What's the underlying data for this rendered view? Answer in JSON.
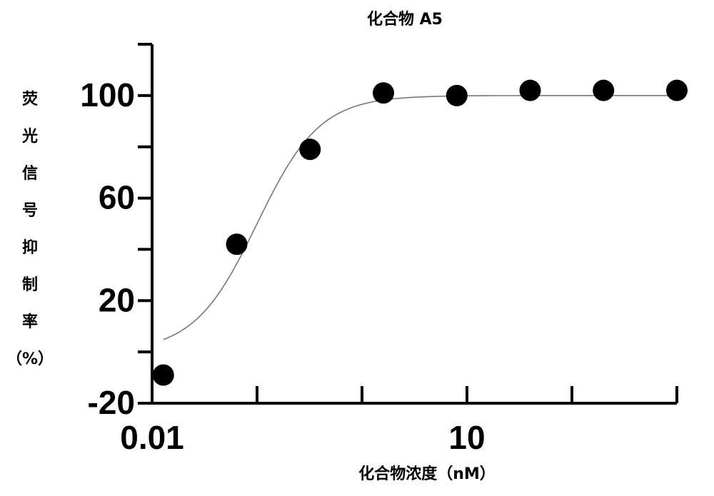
{
  "chart_data": {
    "type": "scatter",
    "title": "化合物 A5",
    "xlabel": "化合物浓度（nM）",
    "ylabel": "荧光信号抑制率（%）",
    "x": [
      0.0128,
      0.064,
      0.32,
      1.6,
      8,
      40,
      200,
      1000
    ],
    "series": [
      {
        "color": "#000000",
        "values": [
          -9,
          42,
          79,
          101,
          100,
          102,
          102,
          102
        ]
      }
    ],
    "fit": {
      "type": "logistic",
      "bottom": 0,
      "top": 100,
      "ec50": 0.1,
      "hill": 1.45,
      "color": "#777777"
    },
    "xscale": "log",
    "xlim": [
      0.01,
      1000
    ],
    "xticks": [
      0.01,
      {
        "value": 0.1,
        "label": null
      },
      {
        "value": 1,
        "label": null
      },
      10,
      {
        "value": 100,
        "label": null
      },
      {
        "value": 1000,
        "label": null
      }
    ],
    "ylim": [
      -20,
      120
    ],
    "yticks": [
      -20,
      20,
      60,
      100
    ],
    "yminor_ticks": [
      0,
      40,
      80,
      120
    ],
    "grid": false
  }
}
